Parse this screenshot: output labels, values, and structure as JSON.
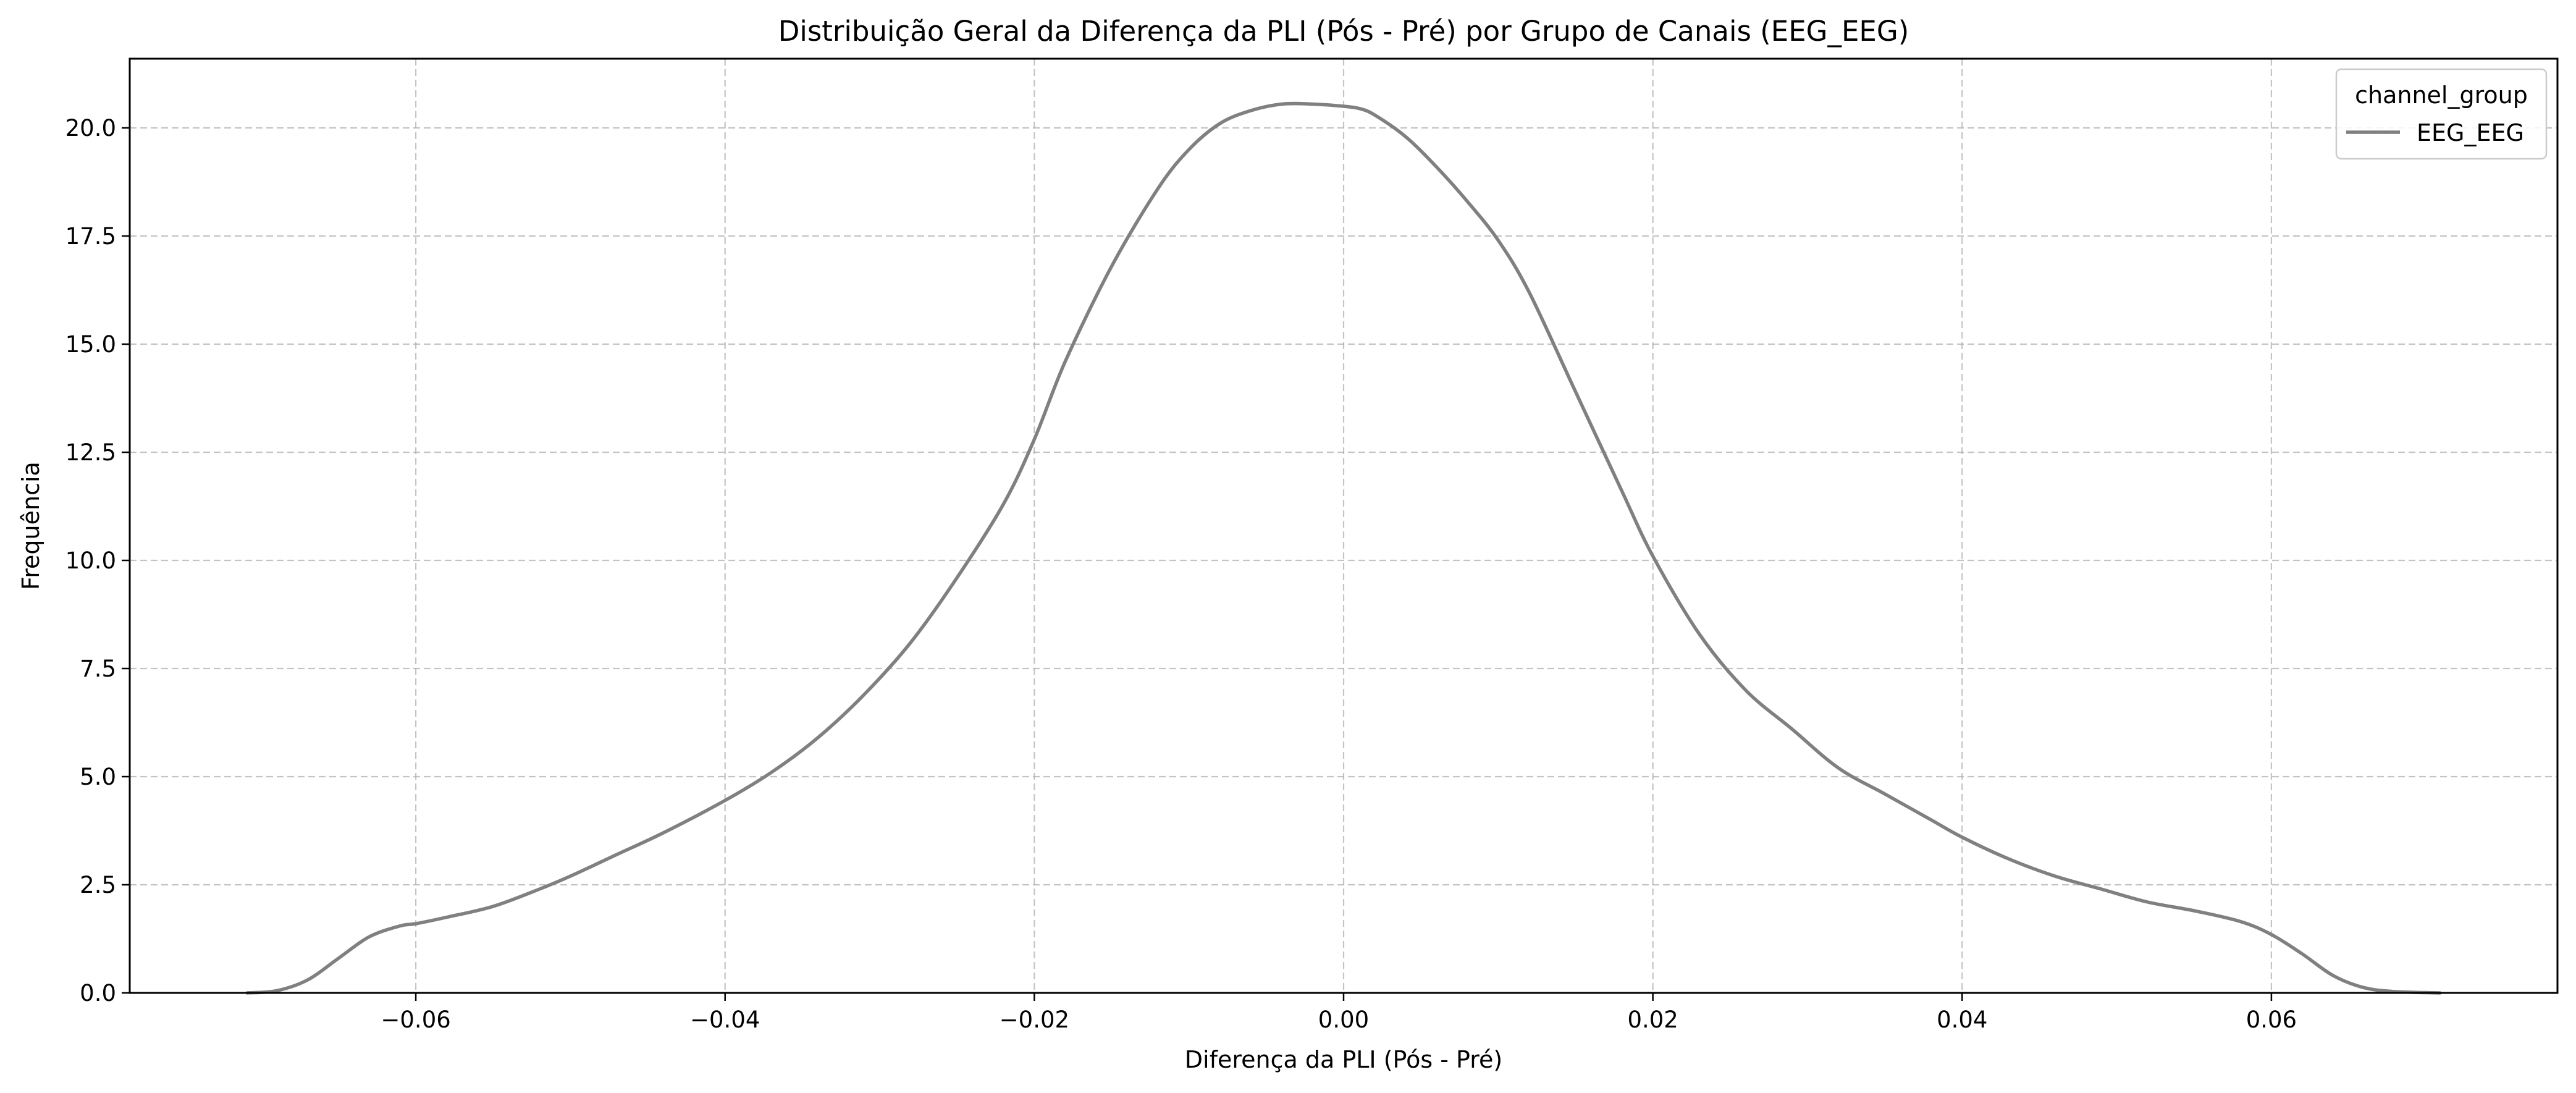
{
  "chart_data": {
    "type": "line",
    "title": "Distribuição Geral da Diferença da PLI (Pós - Pré) por Grupo de Canais (EEG_EEG)",
    "xlabel": "Diferença da PLI (Pós - Pré)",
    "ylabel": "Frequência",
    "xlim": [
      -0.0785,
      0.0785
    ],
    "ylim": [
      0,
      21.6
    ],
    "xticks": [
      -0.06,
      -0.04,
      -0.02,
      0.0,
      0.02,
      0.04,
      0.06
    ],
    "xtick_labels": [
      "−0.06",
      "−0.04",
      "−0.02",
      "0.00",
      "0.02",
      "0.04",
      "0.06"
    ],
    "yticks": [
      0,
      2.5,
      5,
      7.5,
      10,
      12.5,
      15,
      17.5,
      20
    ],
    "ytick_labels": [
      "0.0",
      "2.5",
      "5.0",
      "7.5",
      "10.0",
      "12.5",
      "15.0",
      "17.5",
      "20.0"
    ],
    "grid": true,
    "grid_style": "dashed",
    "legend": {
      "title": "channel_group",
      "position": "top-right",
      "entries": [
        "EEG_EEG"
      ]
    },
    "series": [
      {
        "name": "EEG_EEG",
        "color": "#808080",
        "x": [
          -0.0709,
          -0.069,
          -0.067,
          -0.065,
          -0.063,
          -0.061,
          -0.06,
          -0.058,
          -0.055,
          -0.052,
          -0.05,
          -0.047,
          -0.044,
          -0.04,
          -0.037,
          -0.034,
          -0.031,
          -0.028,
          -0.025,
          -0.022,
          -0.02,
          -0.018,
          -0.015,
          -0.012,
          -0.01,
          -0.008,
          -0.006,
          -0.004,
          -0.002,
          0.0,
          0.001,
          0.002,
          0.004,
          0.006,
          0.008,
          0.01,
          0.012,
          0.015,
          0.018,
          0.02,
          0.023,
          0.026,
          0.029,
          0.032,
          0.035,
          0.038,
          0.04,
          0.043,
          0.046,
          0.049,
          0.052,
          0.055,
          0.058,
          0.06,
          0.062,
          0.064,
          0.066,
          0.068,
          0.0709
        ],
        "y": [
          0.0,
          0.05,
          0.3,
          0.8,
          1.3,
          1.55,
          1.6,
          1.75,
          2.0,
          2.4,
          2.7,
          3.2,
          3.7,
          4.45,
          5.1,
          5.9,
          6.9,
          8.1,
          9.6,
          11.3,
          12.8,
          14.6,
          16.8,
          18.6,
          19.5,
          20.1,
          20.4,
          20.55,
          20.55,
          20.5,
          20.45,
          20.3,
          19.8,
          19.1,
          18.3,
          17.4,
          16.2,
          13.9,
          11.6,
          10.1,
          8.3,
          7.0,
          6.1,
          5.2,
          4.6,
          4.0,
          3.6,
          3.1,
          2.7,
          2.4,
          2.1,
          1.9,
          1.65,
          1.35,
          0.9,
          0.4,
          0.12,
          0.03,
          0.0
        ]
      }
    ]
  }
}
